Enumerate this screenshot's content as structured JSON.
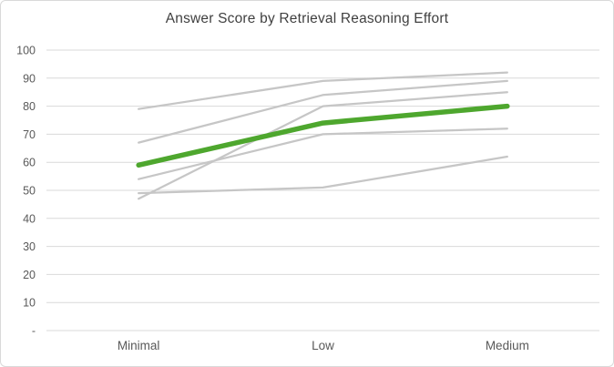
{
  "title": "Answer Score by Retrieval Reasoning Effort",
  "chart_data": {
    "type": "line",
    "title": "Answer Score by Retrieval Reasoning Effort",
    "categories": [
      "Minimal",
      "Low",
      "Medium"
    ],
    "series": [
      {
        "values": [
          79,
          89,
          92
        ],
        "color": "#c6c6c6",
        "emphasis": false
      },
      {
        "values": [
          67,
          84,
          89
        ],
        "color": "#c6c6c6",
        "emphasis": false
      },
      {
        "values": [
          47,
          80,
          85
        ],
        "color": "#c6c6c6",
        "emphasis": false
      },
      {
        "values": [
          54,
          70,
          72
        ],
        "color": "#c6c6c6",
        "emphasis": false
      },
      {
        "values": [
          49,
          51,
          62
        ],
        "color": "#c6c6c6",
        "emphasis": false
      },
      {
        "values": [
          59,
          74,
          80
        ],
        "color": "#4ea72e",
        "emphasis": true
      }
    ],
    "ylim": [
      0,
      100
    ],
    "ytick_step": 10,
    "ytick_labels": [
      "-",
      "10",
      "20",
      "30",
      "40",
      "50",
      "60",
      "70",
      "80",
      "90",
      "100"
    ],
    "xlabel": "",
    "ylabel": "",
    "grid": true,
    "legend": "none"
  },
  "colors": {
    "background": "#ffffff",
    "border": "#d9d9d9",
    "gridline": "#d9d9d9",
    "axis_text": "#595959",
    "title_text": "#404040",
    "gray_series": "#c6c6c6",
    "green_series": "#4ea72e"
  }
}
